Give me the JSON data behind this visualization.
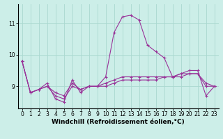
{
  "xlabel": "Windchill (Refroidissement éolien,°C)",
  "ylabel": "",
  "background_color": "#cceee8",
  "grid_color": "#aad8d0",
  "line_color": "#993399",
  "x_ticks": [
    0,
    1,
    2,
    3,
    4,
    5,
    6,
    7,
    8,
    9,
    10,
    11,
    12,
    13,
    14,
    15,
    16,
    17,
    18,
    19,
    20,
    21,
    22,
    23
  ],
  "y_ticks": [
    9,
    10,
    11
  ],
  "ylim": [
    8.3,
    11.6
  ],
  "xlim": [
    -0.5,
    23.5
  ],
  "series": [
    [
      9.8,
      8.8,
      8.9,
      9.1,
      8.6,
      8.5,
      9.2,
      8.8,
      9.0,
      9.0,
      9.3,
      10.7,
      11.2,
      11.25,
      11.1,
      10.3,
      10.1,
      9.9,
      9.3,
      9.4,
      9.5,
      9.5,
      8.7,
      9.0
    ],
    [
      9.8,
      8.8,
      8.9,
      9.0,
      8.8,
      8.7,
      9.1,
      8.9,
      9.0,
      9.0,
      9.0,
      9.1,
      9.2,
      9.2,
      9.2,
      9.2,
      9.2,
      9.3,
      9.3,
      9.3,
      9.4,
      9.4,
      9.1,
      9.0
    ],
    [
      9.8,
      8.8,
      8.9,
      9.0,
      8.7,
      8.6,
      9.0,
      8.9,
      9.0,
      9.0,
      9.1,
      9.2,
      9.3,
      9.3,
      9.3,
      9.3,
      9.3,
      9.3,
      9.3,
      9.4,
      9.4,
      9.4,
      9.0,
      9.0
    ]
  ],
  "marker": "+",
  "marker_size": 3,
  "line_width": 0.8,
  "tick_fontsize": 5.5,
  "label_fontsize": 6.5,
  "label_fontweight": "bold"
}
